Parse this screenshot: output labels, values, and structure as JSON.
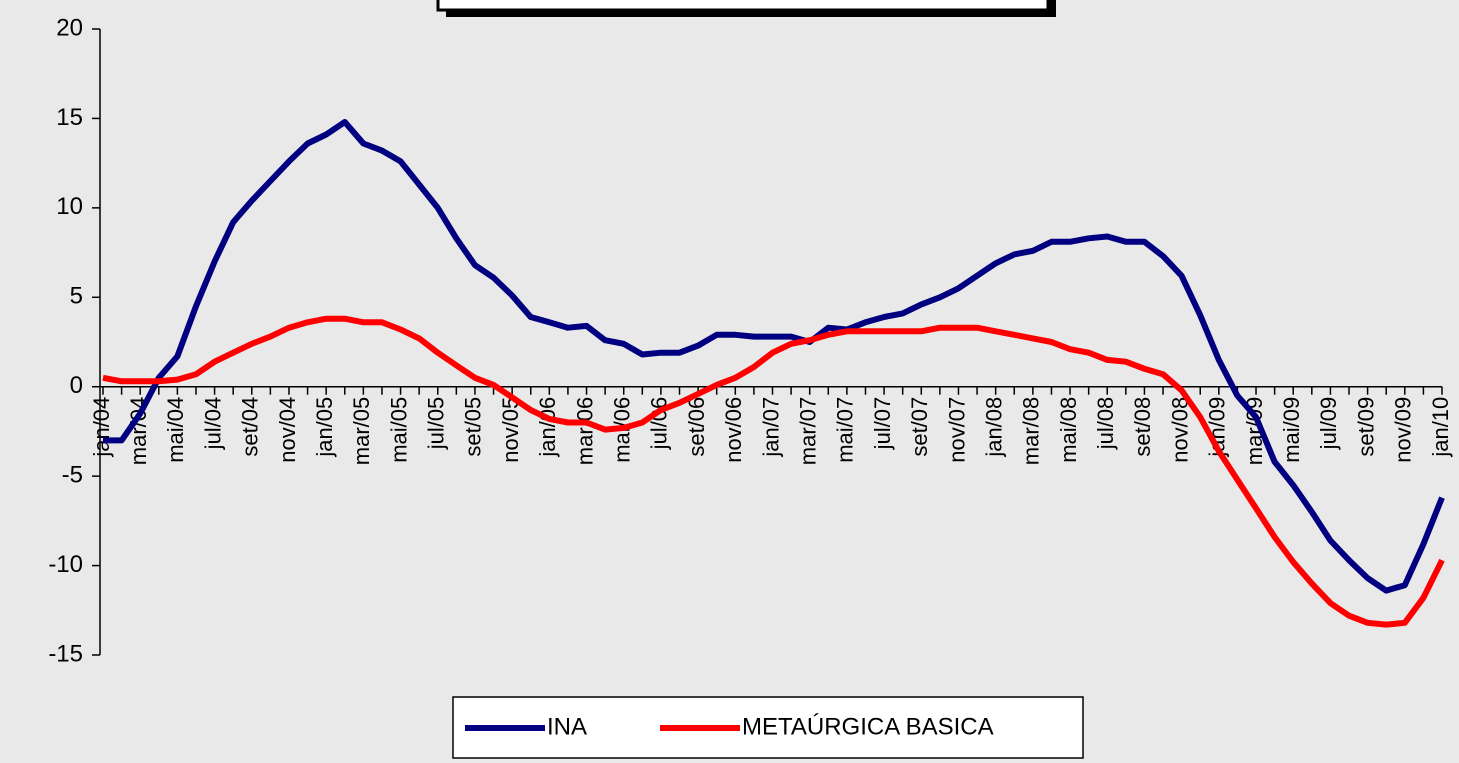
{
  "chart_data": {
    "type": "line",
    "categories": [
      "jan/04",
      null,
      "mar/04",
      null,
      "mai/04",
      null,
      "jul/04",
      null,
      "set/04",
      null,
      "nov/04",
      null,
      "jan/05",
      null,
      "mar/05",
      null,
      "mai/05",
      null,
      "jul/05",
      null,
      "set/05",
      null,
      "nov/05",
      null,
      "jan/06",
      null,
      "mar/06",
      null,
      "mai/06",
      null,
      "jul/06",
      null,
      "set/06",
      null,
      "nov/06",
      null,
      "jan/07",
      null,
      "mar/07",
      null,
      "mai/07",
      null,
      "jul/07",
      null,
      "set/07",
      null,
      "nov/07",
      null,
      "jan/08",
      null,
      "mar/08",
      null,
      "mai/08",
      null,
      "jul/08",
      null,
      "set/08",
      null,
      "nov/08",
      null,
      "jan/09",
      null,
      "mar/09",
      null,
      "mai/09",
      null,
      "jul/09",
      null,
      "set/09",
      null,
      "nov/09",
      null,
      "jan/10"
    ],
    "series": [
      {
        "name": "INA",
        "color": "#000080",
        "values": [
          -3,
          -3,
          -1.5,
          0.5,
          1.7,
          4.5,
          7,
          9.2,
          10.4,
          11.5,
          12.6,
          13.6,
          14.1,
          14.8,
          13.6,
          13.2,
          12.6,
          11.3,
          10,
          8.3,
          6.8,
          6.1,
          5.1,
          3.9,
          3.6,
          3.3,
          3.4,
          2.6,
          2.4,
          1.8,
          1.9,
          1.9,
          2.3,
          2.9,
          2.9,
          2.8,
          2.8,
          2.8,
          2.5,
          3.3,
          3.2,
          3.6,
          3.9,
          4.1,
          4.6,
          5.0,
          5.5,
          6.2,
          6.9,
          7.4,
          7.6,
          8.1,
          8.1,
          8.3,
          8.4,
          8.1,
          8.1,
          7.3,
          6.2,
          4.0,
          1.5,
          -0.5,
          -1.7,
          -4.2,
          -5.5,
          -7.0,
          -8.6,
          -9.7,
          -10.7,
          -11.4,
          -11.1,
          -8.8,
          -6.2
        ]
      },
      {
        "name": "METAÚRGICA BASICA",
        "color": "#ff0000",
        "values": [
          0.5,
          0.3,
          0.3,
          0.3,
          0.4,
          0.7,
          1.4,
          1.9,
          2.4,
          2.8,
          3.3,
          3.6,
          3.8,
          3.8,
          3.6,
          3.6,
          3.2,
          2.7,
          1.9,
          1.2,
          0.5,
          0.1,
          -0.6,
          -1.3,
          -1.8,
          -2.0,
          -2.0,
          -2.4,
          -2.3,
          -2.0,
          -1.3,
          -0.9,
          -0.4,
          0.1,
          0.5,
          1.1,
          1.9,
          2.4,
          2.6,
          2.9,
          3.1,
          3.1,
          3.1,
          3.1,
          3.1,
          3.3,
          3.3,
          3.3,
          3.1,
          2.9,
          2.7,
          2.5,
          2.1,
          1.9,
          1.5,
          1.4,
          1.0,
          0.7,
          -0.2,
          -1.7,
          -3.6,
          -5.2,
          -6.8,
          -8.4,
          -9.8,
          -11.0,
          -12.1,
          -12.8,
          -13.2,
          -13.3,
          -13.2,
          -11.8,
          -9.7
        ]
      }
    ],
    "ylim": [
      -15,
      20
    ],
    "yticks": [
      -15,
      -10,
      -5,
      0,
      5,
      10,
      15,
      20
    ],
    "grid": false,
    "legend": "bottom"
  }
}
